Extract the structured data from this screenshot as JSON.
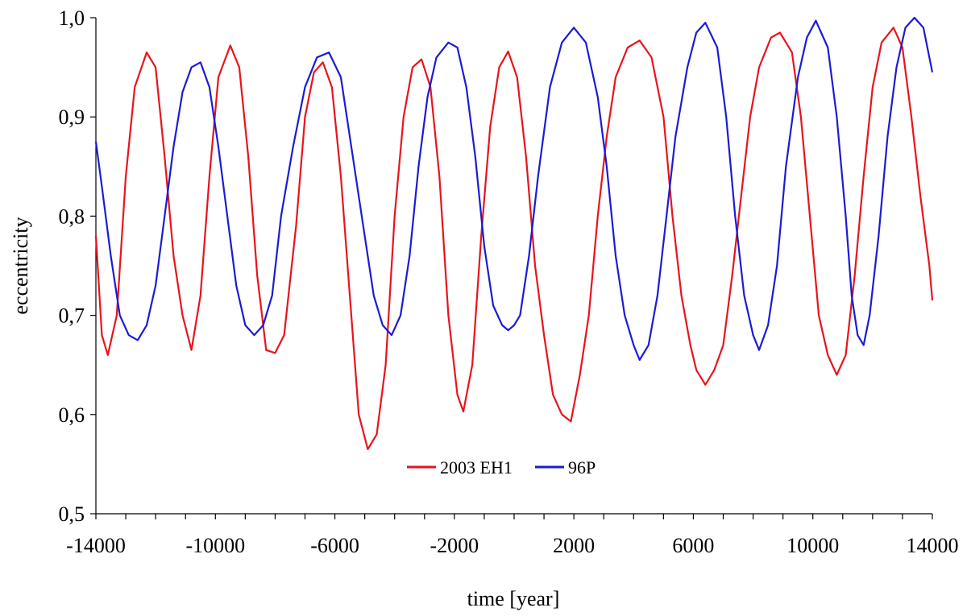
{
  "chart_data": {
    "type": "line",
    "title": "",
    "xlabel": "time [year]",
    "ylabel": "eccentricity",
    "xlim": [
      -14000,
      14000
    ],
    "ylim": [
      0.5,
      1.0
    ],
    "x_ticks": [
      -14000,
      -10000,
      -6000,
      -2000,
      2000,
      6000,
      10000,
      14000
    ],
    "x_tick_labels": [
      "-14000",
      "-10000",
      "-6000",
      "-2000",
      "2000",
      "6000",
      "10000",
      "14000"
    ],
    "x_minor_step": 1000,
    "y_ticks": [
      0.5,
      0.6,
      0.7,
      0.8,
      0.9,
      1.0
    ],
    "y_tick_labels": [
      "0,5",
      "0,6",
      "0,7",
      "0,8",
      "0,9",
      "1,0"
    ],
    "grid": false,
    "legend_position": "bottom-center",
    "series": [
      {
        "name": "2003 EH1",
        "color": "#e8141b",
        "points": [
          [
            -14000,
            0.78
          ],
          [
            -13800,
            0.68
          ],
          [
            -13600,
            0.66
          ],
          [
            -13300,
            0.7
          ],
          [
            -13000,
            0.84
          ],
          [
            -12700,
            0.93
          ],
          [
            -12300,
            0.965
          ],
          [
            -12000,
            0.95
          ],
          [
            -11700,
            0.86
          ],
          [
            -11400,
            0.76
          ],
          [
            -11100,
            0.7
          ],
          [
            -10800,
            0.665
          ],
          [
            -10500,
            0.72
          ],
          [
            -10200,
            0.84
          ],
          [
            -9900,
            0.94
          ],
          [
            -9500,
            0.972
          ],
          [
            -9200,
            0.95
          ],
          [
            -8900,
            0.86
          ],
          [
            -8600,
            0.74
          ],
          [
            -8300,
            0.665
          ],
          [
            -8000,
            0.662
          ],
          [
            -7700,
            0.68
          ],
          [
            -7300,
            0.79
          ],
          [
            -7000,
            0.9
          ],
          [
            -6700,
            0.945
          ],
          [
            -6400,
            0.955
          ],
          [
            -6100,
            0.93
          ],
          [
            -5800,
            0.84
          ],
          [
            -5500,
            0.72
          ],
          [
            -5200,
            0.6
          ],
          [
            -4900,
            0.565
          ],
          [
            -4600,
            0.58
          ],
          [
            -4300,
            0.65
          ],
          [
            -4000,
            0.8
          ],
          [
            -3700,
            0.9
          ],
          [
            -3400,
            0.95
          ],
          [
            -3100,
            0.958
          ],
          [
            -2800,
            0.93
          ],
          [
            -2500,
            0.84
          ],
          [
            -2200,
            0.7
          ],
          [
            -1900,
            0.62
          ],
          [
            -1700,
            0.603
          ],
          [
            -1400,
            0.65
          ],
          [
            -1100,
            0.78
          ],
          [
            -800,
            0.89
          ],
          [
            -500,
            0.95
          ],
          [
            -200,
            0.966
          ],
          [
            100,
            0.94
          ],
          [
            400,
            0.86
          ],
          [
            700,
            0.75
          ],
          [
            1000,
            0.68
          ],
          [
            1300,
            0.62
          ],
          [
            1600,
            0.6
          ],
          [
            1900,
            0.593
          ],
          [
            2200,
            0.64
          ],
          [
            2500,
            0.7
          ],
          [
            2800,
            0.8
          ],
          [
            3100,
            0.88
          ],
          [
            3400,
            0.94
          ],
          [
            3800,
            0.97
          ],
          [
            4200,
            0.977
          ],
          [
            4600,
            0.96
          ],
          [
            5000,
            0.9
          ],
          [
            5300,
            0.8
          ],
          [
            5600,
            0.72
          ],
          [
            5900,
            0.67
          ],
          [
            6100,
            0.645
          ],
          [
            6400,
            0.63
          ],
          [
            6700,
            0.645
          ],
          [
            7000,
            0.67
          ],
          [
            7300,
            0.74
          ],
          [
            7600,
            0.82
          ],
          [
            7900,
            0.9
          ],
          [
            8200,
            0.95
          ],
          [
            8600,
            0.98
          ],
          [
            8900,
            0.985
          ],
          [
            9300,
            0.965
          ],
          [
            9600,
            0.9
          ],
          [
            9900,
            0.8
          ],
          [
            10200,
            0.7
          ],
          [
            10500,
            0.66
          ],
          [
            10800,
            0.64
          ],
          [
            11100,
            0.66
          ],
          [
            11400,
            0.74
          ],
          [
            11700,
            0.84
          ],
          [
            12000,
            0.93
          ],
          [
            12300,
            0.975
          ],
          [
            12700,
            0.99
          ],
          [
            13000,
            0.97
          ],
          [
            13300,
            0.9
          ],
          [
            13600,
            0.82
          ],
          [
            13900,
            0.75
          ],
          [
            14000,
            0.715
          ]
        ]
      },
      {
        "name": "96P",
        "color": "#1b1bd6",
        "points": [
          [
            -14000,
            0.875
          ],
          [
            -13800,
            0.83
          ],
          [
            -13500,
            0.76
          ],
          [
            -13200,
            0.7
          ],
          [
            -12900,
            0.68
          ],
          [
            -12600,
            0.675
          ],
          [
            -12300,
            0.69
          ],
          [
            -12000,
            0.73
          ],
          [
            -11700,
            0.8
          ],
          [
            -11400,
            0.87
          ],
          [
            -11100,
            0.925
          ],
          [
            -10800,
            0.95
          ],
          [
            -10500,
            0.955
          ],
          [
            -10200,
            0.93
          ],
          [
            -9900,
            0.87
          ],
          [
            -9600,
            0.8
          ],
          [
            -9300,
            0.73
          ],
          [
            -9000,
            0.69
          ],
          [
            -8700,
            0.68
          ],
          [
            -8400,
            0.69
          ],
          [
            -8100,
            0.72
          ],
          [
            -7800,
            0.8
          ],
          [
            -7400,
            0.87
          ],
          [
            -7000,
            0.93
          ],
          [
            -6600,
            0.96
          ],
          [
            -6200,
            0.965
          ],
          [
            -5800,
            0.94
          ],
          [
            -5400,
            0.86
          ],
          [
            -5000,
            0.78
          ],
          [
            -4700,
            0.72
          ],
          [
            -4400,
            0.69
          ],
          [
            -4100,
            0.68
          ],
          [
            -3800,
            0.7
          ],
          [
            -3500,
            0.76
          ],
          [
            -3200,
            0.85
          ],
          [
            -2900,
            0.92
          ],
          [
            -2600,
            0.96
          ],
          [
            -2200,
            0.975
          ],
          [
            -1900,
            0.97
          ],
          [
            -1600,
            0.93
          ],
          [
            -1300,
            0.86
          ],
          [
            -1000,
            0.77
          ],
          [
            -700,
            0.71
          ],
          [
            -400,
            0.69
          ],
          [
            -200,
            0.685
          ],
          [
            0,
            0.69
          ],
          [
            200,
            0.7
          ],
          [
            500,
            0.76
          ],
          [
            800,
            0.84
          ],
          [
            1200,
            0.93
          ],
          [
            1600,
            0.975
          ],
          [
            2000,
            0.99
          ],
          [
            2400,
            0.975
          ],
          [
            2800,
            0.92
          ],
          [
            3100,
            0.85
          ],
          [
            3400,
            0.76
          ],
          [
            3700,
            0.7
          ],
          [
            4000,
            0.67
          ],
          [
            4200,
            0.655
          ],
          [
            4500,
            0.67
          ],
          [
            4800,
            0.72
          ],
          [
            5100,
            0.8
          ],
          [
            5400,
            0.88
          ],
          [
            5800,
            0.95
          ],
          [
            6100,
            0.985
          ],
          [
            6400,
            0.995
          ],
          [
            6800,
            0.97
          ],
          [
            7100,
            0.9
          ],
          [
            7400,
            0.8
          ],
          [
            7700,
            0.72
          ],
          [
            8000,
            0.68
          ],
          [
            8200,
            0.665
          ],
          [
            8500,
            0.69
          ],
          [
            8800,
            0.75
          ],
          [
            9100,
            0.85
          ],
          [
            9500,
            0.94
          ],
          [
            9800,
            0.98
          ],
          [
            10100,
            0.997
          ],
          [
            10500,
            0.97
          ],
          [
            10800,
            0.9
          ],
          [
            11100,
            0.8
          ],
          [
            11300,
            0.72
          ],
          [
            11500,
            0.68
          ],
          [
            11700,
            0.67
          ],
          [
            11900,
            0.7
          ],
          [
            12200,
            0.78
          ],
          [
            12500,
            0.88
          ],
          [
            12800,
            0.95
          ],
          [
            13100,
            0.99
          ],
          [
            13400,
            1.0
          ],
          [
            13700,
            0.99
          ],
          [
            14000,
            0.945
          ]
        ]
      }
    ]
  }
}
